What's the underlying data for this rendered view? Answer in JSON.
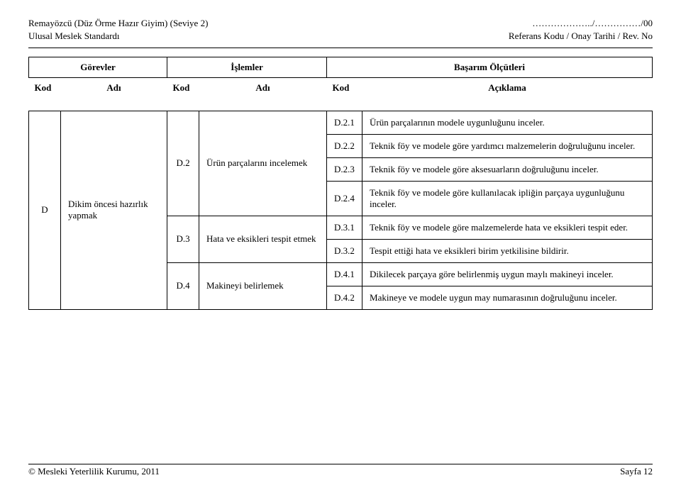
{
  "header": {
    "left_line1": "Remayözcü (Düz Örme Hazır Giyim) (Seviye 2)",
    "left_line2": "Ulusal Meslek Standardı",
    "right_line1": "………………../……………/00",
    "right_line2": "Referans Kodu / Onay Tarihi / Rev. No"
  },
  "band": {
    "gorevler": "Görevler",
    "islemler": "İşlemler",
    "basarim": "Başarım Ölçütleri"
  },
  "subhead": {
    "kod": "Kod",
    "adi": "Adı",
    "aciklama": "Açıklama"
  },
  "task": {
    "kod": "D",
    "adi": "Dikim öncesi hazırlık yapmak"
  },
  "ops": [
    {
      "kod": "D.2",
      "adi": "Ürün parçalarını incelemek"
    },
    {
      "kod": "D.3",
      "adi": "Hata ve eksikleri tespit etmek"
    },
    {
      "kod": "D.4",
      "adi": "Makineyi belirlemek"
    }
  ],
  "criteria": {
    "d2": [
      {
        "kod": "D.2.1",
        "txt": "Ürün parçalarının modele uygunluğunu inceler."
      },
      {
        "kod": "D.2.2",
        "txt": "Teknik föy ve modele göre yardımcı malzemelerin doğruluğunu inceler."
      },
      {
        "kod": "D.2.3",
        "txt": "Teknik föy ve modele göre aksesuarların doğruluğunu inceler."
      },
      {
        "kod": "D.2.4",
        "txt": "Teknik föy ve modele göre kullanılacak ipliğin parçaya uygunluğunu inceler."
      }
    ],
    "d3": [
      {
        "kod": "D.3.1",
        "txt": "Teknik föy ve modele göre malzemelerde hata ve eksikleri tespit eder."
      },
      {
        "kod": "D.3.2",
        "txt": "Tespit ettiği hata ve eksikleri birim yetkilisine bildirir."
      }
    ],
    "d4": [
      {
        "kod": "D.4.1",
        "txt": "Dikilecek parçaya göre belirlenmiş uygun maylı makineyi inceler."
      },
      {
        "kod": "D.4.2",
        "txt": "Makineye ve modele uygun may numarasının doğruluğunu inceler."
      }
    ]
  },
  "footer": {
    "left": "© Mesleki Yeterlilik Kurumu, 2011",
    "right": "Sayfa 12"
  }
}
